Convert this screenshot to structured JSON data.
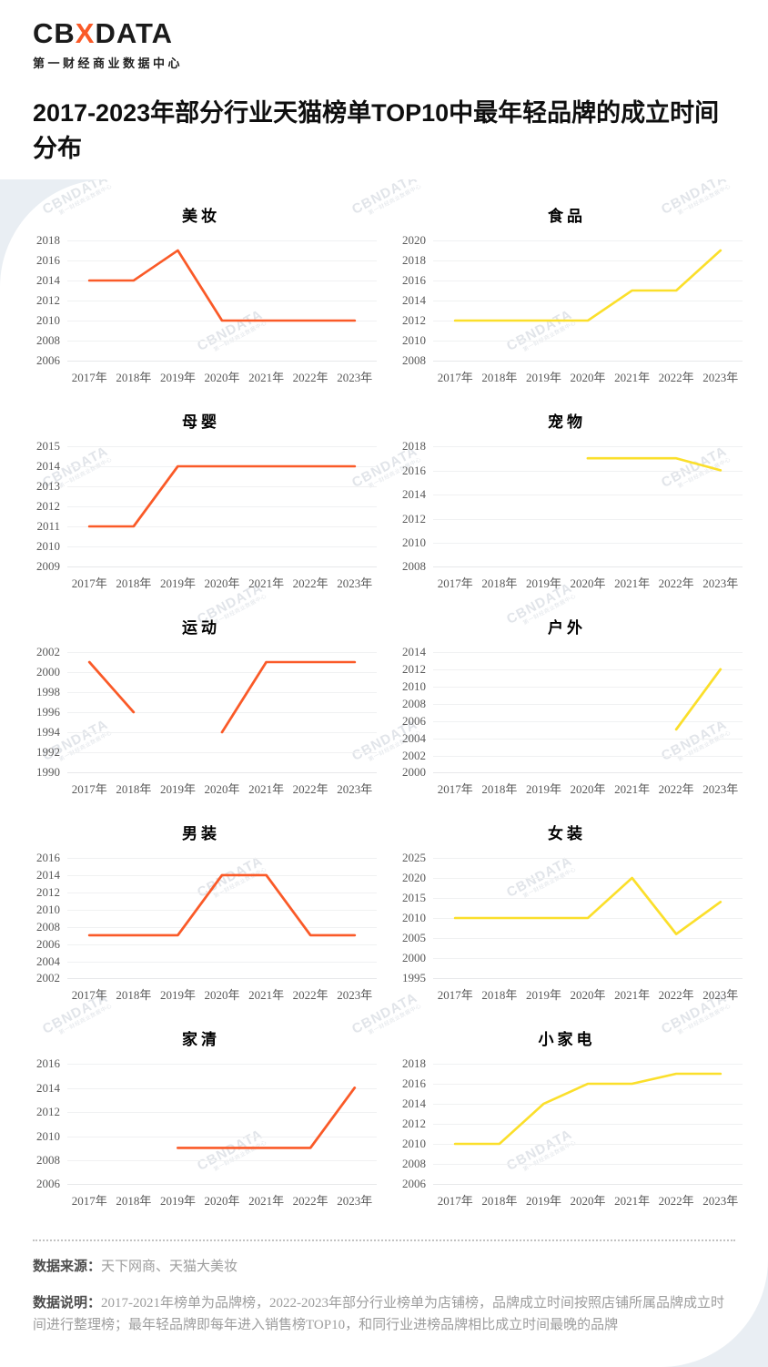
{
  "logo": {
    "prefix": "CB",
    "accent": "X",
    "suffix": "DATA",
    "subtitle": "第一财经商业数据中心"
  },
  "title": "2017-2023年部分行业天猫榜单TOP10中最年轻品牌的成立时间分布",
  "watermark": {
    "brand": "CBNDATA",
    "subtitle": "第一财经商业数据中心"
  },
  "colors": {
    "orange": "#fa5a28",
    "yellow": "#fbdf2b",
    "gridline": "#f0f1f2",
    "tick_text": "#595959",
    "page_background": "#e9eef3"
  },
  "chart_data": [
    {
      "type": "line",
      "title": "美妆",
      "color": "#fa5a28",
      "categories": [
        "2017年",
        "2018年",
        "2019年",
        "2020年",
        "2021年",
        "2022年",
        "2023年"
      ],
      "values": [
        2014,
        2014,
        2017,
        2010,
        2010,
        2010,
        2010
      ],
      "y_ticks": [
        2006,
        2008,
        2010,
        2012,
        2014,
        2016,
        2018
      ],
      "ylim": [
        2006,
        2018
      ]
    },
    {
      "type": "line",
      "title": "食品",
      "color": "#fbdf2b",
      "categories": [
        "2017年",
        "2018年",
        "2019年",
        "2020年",
        "2021年",
        "2022年",
        "2023年"
      ],
      "values": [
        2012,
        2012,
        2012,
        2012,
        2015,
        2015,
        2019
      ],
      "y_ticks": [
        2008,
        2010,
        2012,
        2014,
        2016,
        2018,
        2020
      ],
      "ylim": [
        2008,
        2020
      ]
    },
    {
      "type": "line",
      "title": "母婴",
      "color": "#fa5a28",
      "categories": [
        "2017年",
        "2018年",
        "2019年",
        "2020年",
        "2021年",
        "2022年",
        "2023年"
      ],
      "values": [
        2011,
        2011,
        2014,
        2014,
        2014,
        2014,
        2014
      ],
      "y_ticks": [
        2009,
        2010,
        2011,
        2012,
        2013,
        2014,
        2015
      ],
      "ylim": [
        2009,
        2015
      ]
    },
    {
      "type": "line",
      "title": "宠物",
      "color": "#fbdf2b",
      "categories": [
        "2017年",
        "2018年",
        "2019年",
        "2020年",
        "2021年",
        "2022年",
        "2023年"
      ],
      "values": [
        null,
        null,
        null,
        2017,
        2017,
        2017,
        2016
      ],
      "y_ticks": [
        2008,
        2010,
        2012,
        2014,
        2016,
        2018
      ],
      "ylim": [
        2008,
        2018
      ]
    },
    {
      "type": "line",
      "title": "运动",
      "color": "#fa5a28",
      "categories": [
        "2017年",
        "2018年",
        "2019年",
        "2020年",
        "2021年",
        "2022年",
        "2023年"
      ],
      "values": [
        2001,
        1996,
        null,
        1994,
        2001,
        2001,
        2001
      ],
      "y_ticks": [
        1990,
        1992,
        1994,
        1996,
        1998,
        2000,
        2002
      ],
      "ylim": [
        1990,
        2002
      ]
    },
    {
      "type": "line",
      "title": "户外",
      "color": "#fbdf2b",
      "categories": [
        "2017年",
        "2018年",
        "2019年",
        "2020年",
        "2021年",
        "2022年",
        "2023年"
      ],
      "values": [
        null,
        null,
        null,
        null,
        null,
        2005,
        2012
      ],
      "y_ticks": [
        2000,
        2002,
        2004,
        2006,
        2008,
        2010,
        2012,
        2014
      ],
      "ylim": [
        2000,
        2014
      ]
    },
    {
      "type": "line",
      "title": "男装",
      "color": "#fa5a28",
      "categories": [
        "2017年",
        "2018年",
        "2019年",
        "2020年",
        "2021年",
        "2022年",
        "2023年"
      ],
      "values": [
        2007,
        2007,
        2007,
        2014,
        2014,
        2007,
        2007
      ],
      "y_ticks": [
        2002,
        2004,
        2006,
        2008,
        2010,
        2012,
        2014,
        2016
      ],
      "ylim": [
        2002,
        2016
      ]
    },
    {
      "type": "line",
      "title": "女装",
      "color": "#fbdf2b",
      "categories": [
        "2017年",
        "2018年",
        "2019年",
        "2020年",
        "2021年",
        "2022年",
        "2023年"
      ],
      "values": [
        2010,
        2010,
        2010,
        2010,
        2020,
        2006,
        2014
      ],
      "y_ticks": [
        1995,
        2000,
        2005,
        2010,
        2015,
        2020,
        2025
      ],
      "ylim": [
        1995,
        2025
      ]
    },
    {
      "type": "line",
      "title": "家清",
      "color": "#fa5a28",
      "categories": [
        "2017年",
        "2018年",
        "2019年",
        "2020年",
        "2021年",
        "2022年",
        "2023年"
      ],
      "values": [
        null,
        null,
        2009,
        2009,
        2009,
        2009,
        2014
      ],
      "y_ticks": [
        2006,
        2008,
        2010,
        2012,
        2014,
        2016
      ],
      "ylim": [
        2006,
        2016
      ]
    },
    {
      "type": "line",
      "title": "小家电",
      "color": "#fbdf2b",
      "categories": [
        "2017年",
        "2018年",
        "2019年",
        "2020年",
        "2021年",
        "2022年",
        "2023年"
      ],
      "values": [
        2010,
        2010,
        2014,
        2016,
        2016,
        2017,
        2017
      ],
      "y_ticks": [
        2006,
        2008,
        2010,
        2012,
        2014,
        2016,
        2018
      ],
      "ylim": [
        2006,
        2018
      ]
    }
  ],
  "footer": {
    "source_label": "数据来源：",
    "source_value": "天下网商、天猫大美妆",
    "note_label": "数据说明：",
    "note_value": "2017-2021年榜单为品牌榜，2022-2023年部分行业榜单为店铺榜，品牌成立时间按照店铺所属品牌成立时间进行整理榜；最年轻品牌即每年进入销售榜TOP10，和同行业进榜品牌相比成立时间最晚的品牌"
  }
}
